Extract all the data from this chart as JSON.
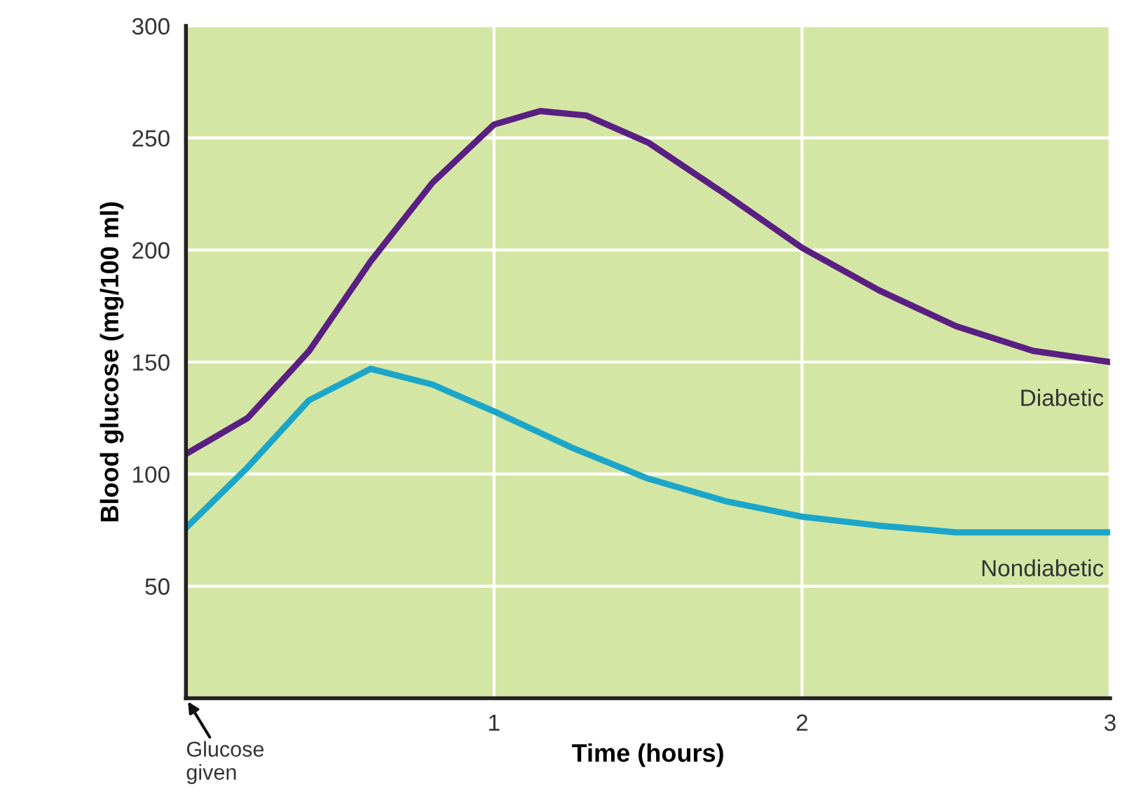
{
  "chart_data": {
    "type": "line",
    "xlabel": "Time (hours)",
    "ylabel": "Blood glucose (mg/100 ml)",
    "xlim": [
      0,
      3
    ],
    "xticks": [
      1,
      2,
      3
    ],
    "ylim": [
      0,
      300
    ],
    "yticks": [
      50,
      100,
      150,
      200,
      250,
      300
    ],
    "grid": true,
    "legend": false,
    "marker": "none",
    "line_style": "solid",
    "series": [
      {
        "name": "Diabetic",
        "color": "#5a1f82",
        "x": [
          0,
          0.2,
          0.4,
          0.6,
          0.8,
          1.0,
          1.15,
          1.3,
          1.5,
          1.75,
          2.0,
          2.25,
          2.5,
          2.75,
          3.0
        ],
        "values": [
          109,
          125,
          155,
          195,
          230,
          256,
          262,
          260,
          248,
          225,
          201,
          182,
          166,
          155,
          150
        ]
      },
      {
        "name": "Nondiabetic",
        "color": "#1ba6c9",
        "x": [
          0,
          0.2,
          0.4,
          0.6,
          0.8,
          1.0,
          1.25,
          1.5,
          1.75,
          2.0,
          2.25,
          2.5,
          2.75,
          3.0
        ],
        "values": [
          76,
          103,
          133,
          147,
          140,
          128,
          112,
          98,
          88,
          81,
          77,
          74,
          74,
          74
        ]
      }
    ],
    "annotations": [
      "Glucose\ngiven"
    ]
  }
}
